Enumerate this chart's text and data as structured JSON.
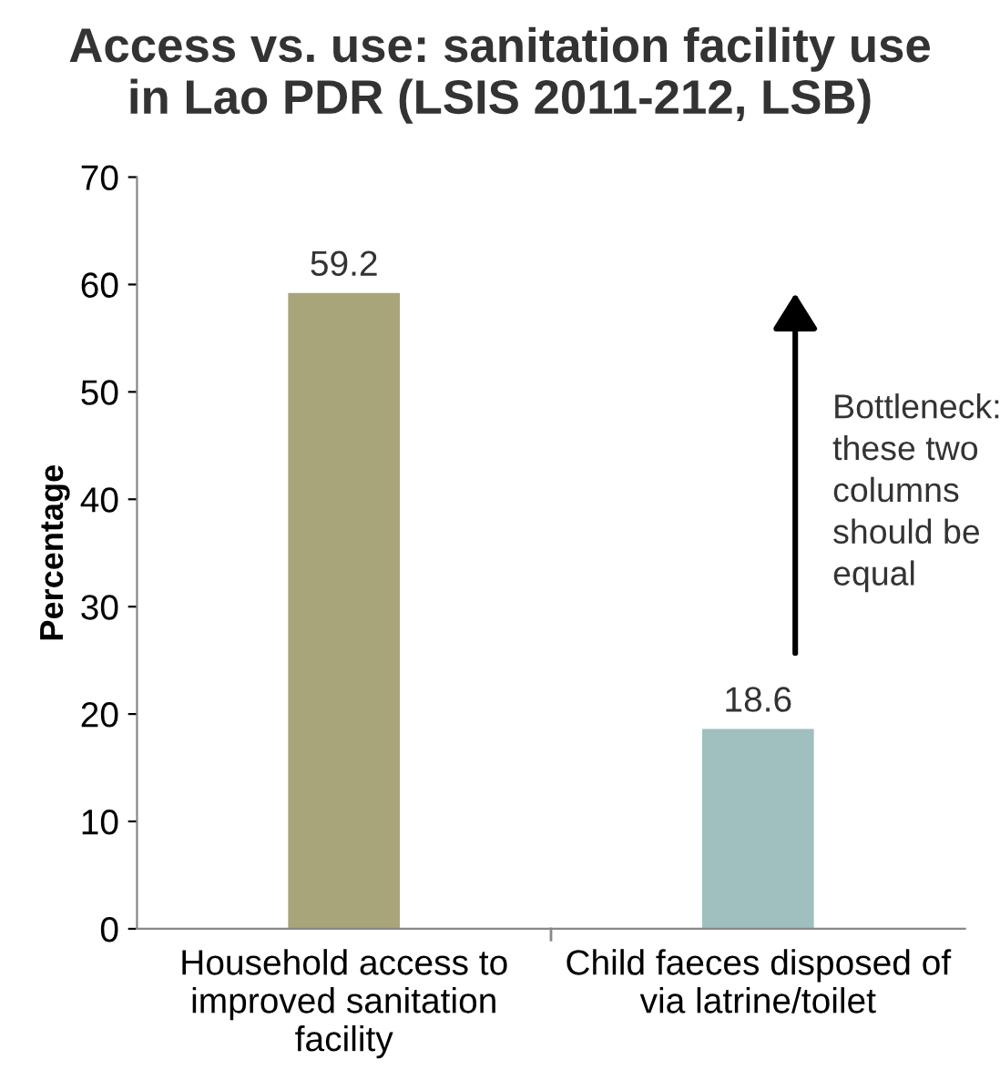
{
  "chart_data": {
    "type": "bar",
    "title": "Access vs. use: sanitation facility use\nin Lao PDR (LSIS 2011-212, LSB)",
    "ylabel": "Percentage",
    "categories": [
      "Household access to\nimproved sanitation\nfacility",
      "Child faeces disposed of\nvia latrine/toilet"
    ],
    "values": [
      59.2,
      18.6
    ],
    "colors": [
      "#a9a57b",
      "#9fc0bf"
    ],
    "ylim": [
      0,
      70
    ],
    "yticks": [
      0,
      10,
      20,
      30,
      40,
      50,
      60,
      70
    ],
    "grid": false,
    "data_labels": true,
    "annotations": [
      "Bottleneck:\nthese two\ncolumns\nshould be\nequal"
    ]
  }
}
